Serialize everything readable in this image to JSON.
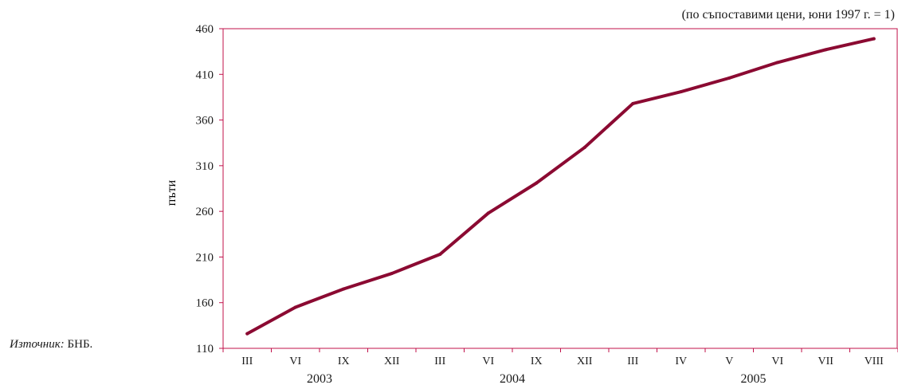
{
  "chart_data": {
    "type": "line",
    "title": "(по съпоставими цени, юни 1997 г. = 1)",
    "ylabel": "пъти",
    "ylim": [
      110,
      460
    ],
    "yticks": [
      110,
      160,
      210,
      260,
      310,
      360,
      410,
      460
    ],
    "categories": [
      "III",
      "VI",
      "IX",
      "XII",
      "III",
      "VI",
      "IX",
      "XII",
      "III",
      "IV",
      "V",
      "VI",
      "VII",
      "VIII"
    ],
    "years": [
      {
        "label": "2003",
        "start": 0,
        "end": 3
      },
      {
        "label": "2004",
        "start": 4,
        "end": 7
      },
      {
        "label": "2005",
        "start": 8,
        "end": 13
      }
    ],
    "series": [
      {
        "color": "#8b0a32",
        "values": [
          126,
          155,
          175,
          192,
          213,
          258,
          291,
          330,
          378,
          391,
          406,
          423,
          437,
          449
        ]
      }
    ],
    "grid": false
  },
  "source": {
    "label": "Източник:",
    "text": "БНБ."
  }
}
